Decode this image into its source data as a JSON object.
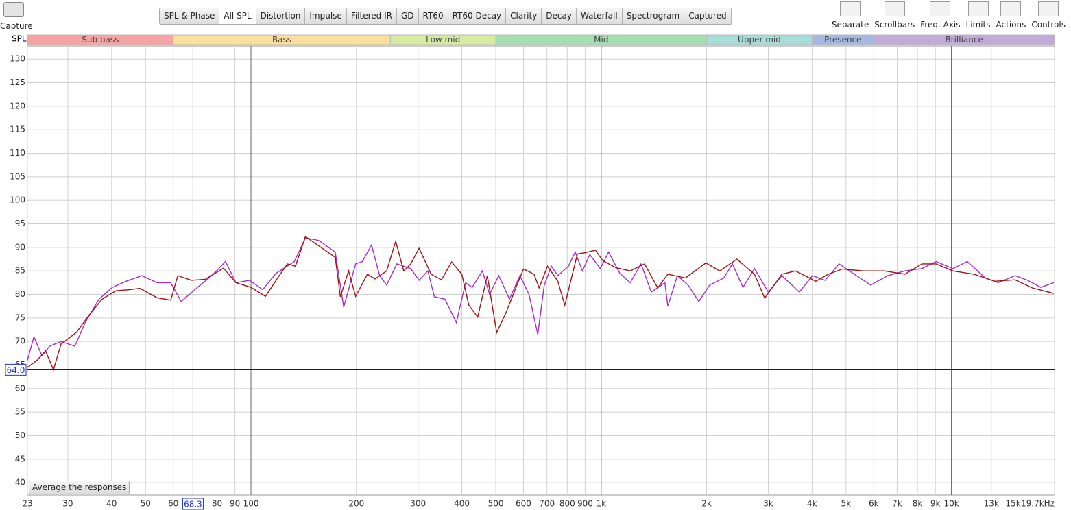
{
  "toolbar": {
    "capture": "Capture",
    "tabs": [
      "SPL & Phase",
      "All SPL",
      "Distortion",
      "Impulse",
      "Filtered IR",
      "GD",
      "RT60",
      "RT60 Decay",
      "Clarity",
      "Decay",
      "Waterfall",
      "Spectrogram",
      "Captured"
    ],
    "selected_tab": 1,
    "tools": [
      "Separate",
      "Scrollbars",
      "Freq. Axis",
      "Limits",
      "Actions",
      "Controls"
    ]
  },
  "button": "Average the responses",
  "chart_data": {
    "type": "line",
    "y_label": "SPL",
    "log_x": true,
    "xlim": [
      23,
      19700
    ],
    "ylim": [
      37.4,
      132.8
    ],
    "xticks": [
      23,
      30,
      40,
      50,
      60,
      80,
      90,
      100,
      200,
      300,
      400,
      500,
      600,
      700,
      800,
      900,
      {
        "value": 1000,
        "label": "1k"
      },
      {
        "value": 2000,
        "label": "2k"
      },
      {
        "value": 3000,
        "label": "3k"
      },
      {
        "value": 4000,
        "label": "4k"
      },
      {
        "value": 5000,
        "label": "5k"
      },
      {
        "value": 6000,
        "label": "6k"
      },
      {
        "value": 7000,
        "label": "7k"
      },
      {
        "value": 8000,
        "label": "8k"
      },
      {
        "value": 9000,
        "label": "9k"
      },
      {
        "value": 10000,
        "label": "10k"
      },
      {
        "value": 13000,
        "label": "13k"
      },
      {
        "value": 15000,
        "label": "15k"
      },
      {
        "value": 19700,
        "label": "19.7kHz"
      }
    ],
    "decade_lines": [
      100,
      1000,
      10000
    ],
    "yticks": [
      40,
      45,
      50,
      55,
      60,
      65,
      70,
      75,
      80,
      85,
      90,
      95,
      100,
      105,
      110,
      115,
      120,
      125,
      130
    ],
    "bands": [
      {
        "name": "Sub bass",
        "from": 23,
        "to": 60,
        "color": "#f5a3a3"
      },
      {
        "name": "Bass",
        "from": 60,
        "to": 250,
        "color": "#fbdf9c"
      },
      {
        "name": "Low mid",
        "from": 250,
        "to": 500,
        "color": "#d6eaa2"
      },
      {
        "name": "Mid",
        "from": 500,
        "to": 2000,
        "color": "#a5deb0"
      },
      {
        "name": "Upper mid",
        "from": 2000,
        "to": 4000,
        "color": "#a6ddd9"
      },
      {
        "name": "Presence",
        "from": 4000,
        "to": 6000,
        "color": "#a6b8e2"
      },
      {
        "name": "Brilliance",
        "from": 6000,
        "to": 19700,
        "color": "#c3abd9"
      }
    ],
    "cursor_x": 68.3,
    "cursor_y": {
      "value": 64,
      "label": "64.0"
    },
    "series": [
      {
        "color": "#a01010",
        "x": [
          23,
          24.5,
          25.9,
          27.3,
          28.7,
          30,
          31.8,
          34.4,
          37.6,
          41.2,
          45,
          48.2,
          53.9,
          59,
          61.8,
          67.6,
          74,
          83.5,
          90.6,
          100,
          110,
          118,
          127,
          134,
          143,
          153,
          174,
          180,
          190,
          199,
          215,
          226,
          244,
          259,
          273,
          286,
          302,
          327,
          350,
          374,
          400,
          419,
          444,
          473,
          503,
          536,
          575,
          600,
          643,
          665,
          703,
          752,
          787,
          855,
          903,
          963,
          1010,
          1100,
          1210,
          1330,
          1450,
          1550,
          1740,
          1990,
          2180,
          2440,
          2740,
          2930,
          3280,
          3590,
          4100,
          4450,
          4880,
          5610,
          6430,
          7370,
          8240,
          9040,
          10100,
          11600,
          13300,
          15200,
          17000,
          19600
        ],
        "values": [
          64.5,
          66,
          68,
          64,
          69.5,
          70.5,
          72,
          75.5,
          79,
          80.8,
          81,
          81.3,
          79.3,
          78.8,
          84,
          83,
          83.2,
          85.6,
          82.5,
          81.5,
          79.6,
          83,
          86.5,
          86,
          92.3,
          90.8,
          87.9,
          79.5,
          85,
          79.6,
          84.3,
          83.3,
          85,
          91.3,
          85,
          86.5,
          89.8,
          84.3,
          83.1,
          86.9,
          84.3,
          77.7,
          75.2,
          84,
          71.9,
          76.3,
          82,
          85.4,
          84.3,
          81.4,
          86,
          82.8,
          77.7,
          88.6,
          88.9,
          89.4,
          87.2,
          85.7,
          85,
          86.5,
          81.4,
          84.3,
          83.5,
          86.7,
          85,
          87.5,
          84.3,
          79.2,
          84.3,
          85,
          82.8,
          84.3,
          85.4,
          85,
          85,
          84.3,
          86.5,
          86.5,
          85,
          84.3,
          82.8,
          83.1,
          81.4,
          80.2
        ]
      },
      {
        "color": "#a52ad0",
        "x": [
          23,
          24,
          25.3,
          26.6,
          28.7,
          31.4,
          33.6,
          36.8,
          40.2,
          44,
          48.8,
          53.9,
          59,
          63.2,
          69.1,
          77.3,
          84.6,
          90.6,
          99.1,
          108,
          118,
          133,
          143,
          156,
          174,
          184,
          199,
          208,
          221,
          233,
          244,
          261,
          286,
          302,
          320,
          334,
          358,
          386,
          410,
          428,
          458,
          480,
          510,
          547,
          586,
          622,
          659,
          688,
          721,
          752,
          806,
          843,
          884,
          928,
          994,
          1050,
          1130,
          1210,
          1300,
          1390,
          1520,
          1550,
          1650,
          1770,
          1900,
          2040,
          2240,
          2370,
          2540,
          2740,
          3000,
          3280,
          3680,
          4010,
          4360,
          4780,
          5230,
          5880,
          6580,
          7370,
          8240,
          9040,
          10100,
          11100,
          12500,
          13600,
          15200,
          16500,
          18000,
          19600
        ],
        "values": [
          66,
          71,
          67,
          69,
          70,
          69,
          74,
          79,
          81.5,
          82.8,
          84,
          82.5,
          82.5,
          78.5,
          81,
          84,
          87,
          82.5,
          83,
          81,
          84.5,
          87,
          92,
          91.5,
          89,
          77.3,
          86.5,
          87,
          90.5,
          84,
          82,
          86.5,
          85.5,
          83,
          85,
          79.5,
          79,
          74,
          82.5,
          81.5,
          85,
          80,
          84,
          79,
          84,
          80,
          71.5,
          82,
          86,
          84,
          86,
          89,
          85,
          88.5,
          85.5,
          89,
          84.5,
          82.5,
          86.5,
          80.5,
          82.5,
          77.5,
          84,
          82,
          78.5,
          82,
          83.5,
          86.5,
          81.5,
          85.5,
          80.5,
          84,
          80.5,
          84,
          83,
          86.5,
          84.5,
          82,
          84,
          85,
          85.5,
          87,
          85.5,
          87,
          83.5,
          82.5,
          84,
          83,
          81.5,
          82.5
        ]
      }
    ]
  }
}
